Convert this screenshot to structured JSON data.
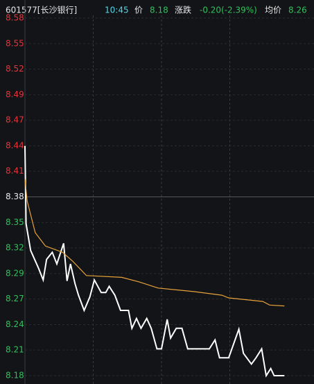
{
  "chart_data": {
    "type": "line",
    "header": {
      "code": "601577[长沙银行]",
      "time": "10:45",
      "price_label": "价",
      "price": "8.18",
      "change_label": "涨跌",
      "change": "-0.20(-2.39%)",
      "avg_label": "均价",
      "avg": "8.26"
    },
    "prev_close": 8.38,
    "xlim": [
      0,
      240
    ],
    "xticks": [
      60,
      120,
      180
    ],
    "ylim": [
      8.18,
      8.58
    ],
    "yticks": [
      {
        "value": 8.58,
        "label": "8.58"
      },
      {
        "value": 8.5514,
        "label": "8.55"
      },
      {
        "value": 8.5229,
        "label": "8.52"
      },
      {
        "value": 8.4943,
        "label": "8.49"
      },
      {
        "value": 8.4657,
        "label": "8.47"
      },
      {
        "value": 8.4371,
        "label": "8.44"
      },
      {
        "value": 8.4086,
        "label": "8.41"
      },
      {
        "value": 8.38,
        "label": "8.38"
      },
      {
        "value": 8.3514,
        "label": "8.35"
      },
      {
        "value": 8.3229,
        "label": "8.32"
      },
      {
        "value": 8.2943,
        "label": "8.29"
      },
      {
        "value": 8.2657,
        "label": "8.27"
      },
      {
        "value": 8.2371,
        "label": "8.24"
      },
      {
        "value": 8.2086,
        "label": "8.21"
      },
      {
        "value": 8.18,
        "label": "8.18"
      }
    ],
    "up_color": "#e8333a",
    "down_color": "#2fc25b",
    "flat_color": "#e8e8e8",
    "series": [
      {
        "color": "#ffffff",
        "x": [
          0,
          1,
          5,
          12,
          16,
          19,
          24,
          28,
          34,
          37,
          40,
          44,
          47,
          52,
          57,
          61,
          67,
          71,
          74,
          79,
          84,
          91,
          94,
          98,
          102,
          107,
          111,
          116,
          120,
          125,
          128,
          133,
          138,
          143,
          162,
          167,
          171,
          179,
          188,
          192,
          199,
          203,
          208,
          212,
          216,
          219,
          228
        ],
        "values": [
          8.437,
          8.35,
          8.32,
          8.3,
          8.287,
          8.31,
          8.318,
          8.305,
          8.328,
          8.286,
          8.305,
          8.283,
          8.27,
          8.253,
          8.268,
          8.287,
          8.273,
          8.273,
          8.28,
          8.27,
          8.253,
          8.253,
          8.233,
          8.244,
          8.233,
          8.244,
          8.233,
          8.21,
          8.21,
          8.243,
          8.222,
          8.233,
          8.233,
          8.21,
          8.21,
          8.22,
          8.2,
          8.2,
          8.232,
          8.205,
          8.193,
          8.2,
          8.21,
          8.18,
          8.188,
          8.18,
          8.18
        ]
      },
      {
        "color": "#e8a33a",
        "x": [
          0,
          2,
          9,
          18,
          33,
          42,
          54,
          85,
          100,
          117,
          149,
          173,
          179,
          209,
          215,
          228
        ],
        "values": [
          8.4,
          8.375,
          8.34,
          8.325,
          8.318,
          8.308,
          8.292,
          8.29,
          8.285,
          8.278,
          8.274,
          8.27,
          8.267,
          8.263,
          8.259,
          8.258
        ]
      }
    ]
  }
}
